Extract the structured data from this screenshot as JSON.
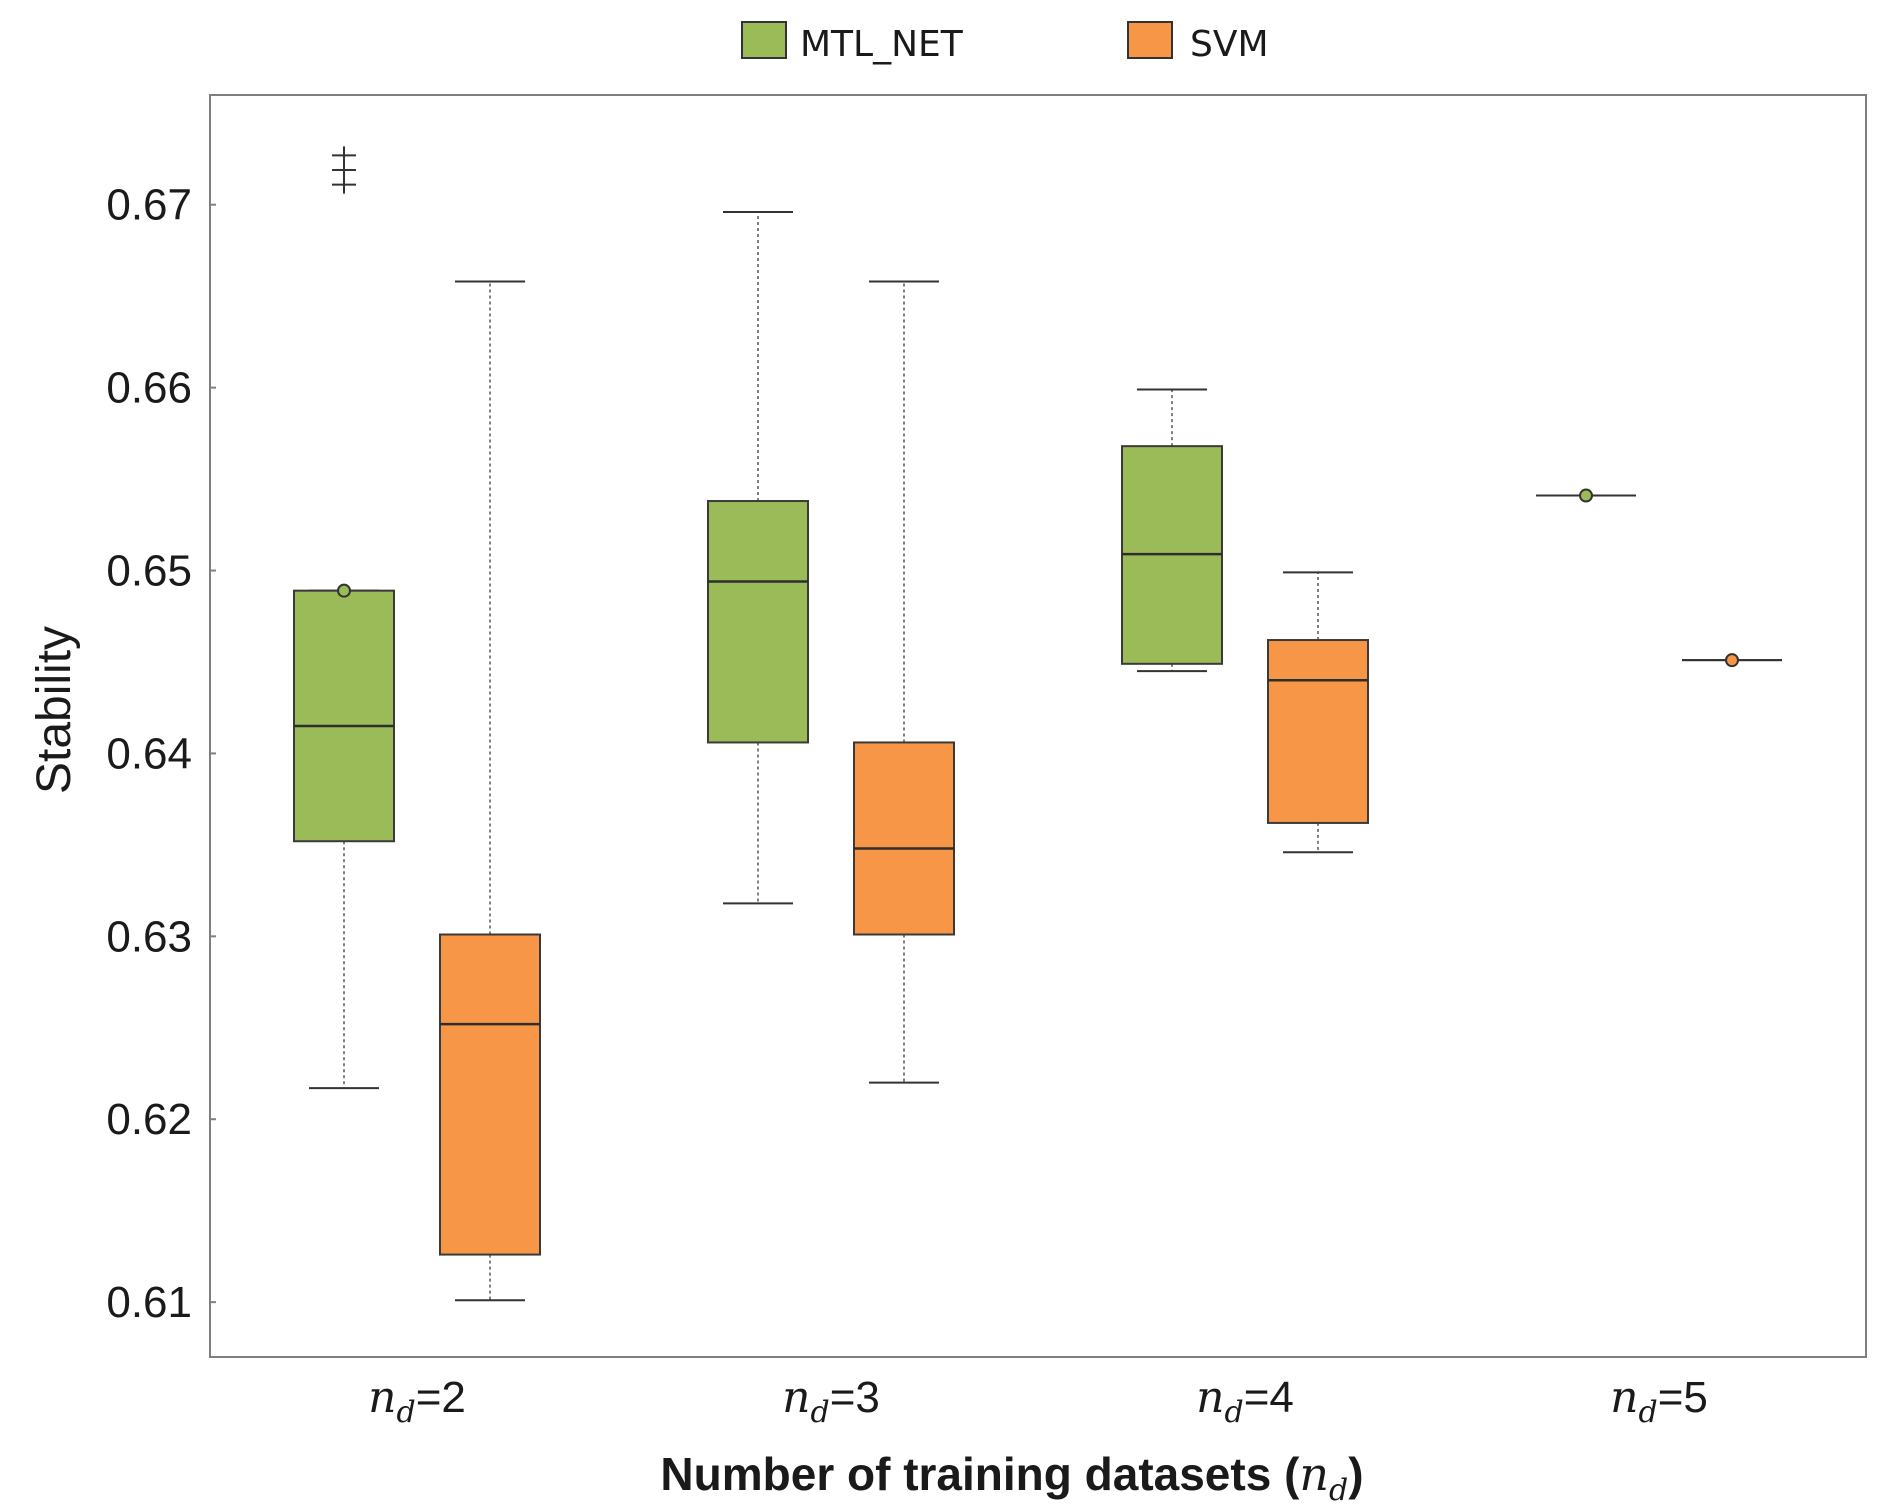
{
  "chart_data": {
    "type": "boxplot",
    "title": "",
    "xlabel": "Number of training datasets (n_d)",
    "ylabel": "Stability",
    "ylim": [
      0.607,
      0.676
    ],
    "yticks": [
      0.61,
      0.62,
      0.63,
      0.64,
      0.65,
      0.66,
      0.67
    ],
    "ytick_labels": [
      "0.61",
      "0.62",
      "0.63",
      "0.64",
      "0.65",
      "0.66",
      "0.67"
    ],
    "xlabel_parts": {
      "prefix": "Number of training datasets (",
      "var": "n",
      "sub": "d",
      "suffix": ")"
    },
    "categories": [
      {
        "var": "n",
        "sub": "d",
        "value": "=2"
      },
      {
        "var": "n",
        "sub": "d",
        "value": "=3"
      },
      {
        "var": "n",
        "sub": "d",
        "value": "=4"
      },
      {
        "var": "n",
        "sub": "d",
        "value": "=5"
      }
    ],
    "legend": {
      "position": "top-center"
    },
    "series": [
      {
        "name": "MTL_NET",
        "color": "#9bbb59",
        "boxes": [
          {
            "whislo": 0.6217,
            "q1": 0.6352,
            "med": 0.6415,
            "q3": 0.6489,
            "whishi": 0.6489,
            "fliers": [
              0.6711,
              0.6719,
              0.6727
            ],
            "dots": [
              0.6489
            ]
          },
          {
            "whislo": 0.6318,
            "q1": 0.6406,
            "med": 0.6494,
            "q3": 0.6538,
            "whishi": 0.6696,
            "fliers": [],
            "dots": []
          },
          {
            "whislo": 0.6445,
            "q1": 0.6449,
            "med": 0.6509,
            "q3": 0.6568,
            "whishi": 0.6599,
            "fliers": [],
            "dots": []
          },
          {
            "whislo": 0.6541,
            "q1": 0.6541,
            "med": 0.6541,
            "q3": 0.6541,
            "whishi": 0.6541,
            "fliers": [],
            "dots": [
              0.6541
            ]
          }
        ]
      },
      {
        "name": "SVM",
        "color": "#f79646",
        "boxes": [
          {
            "whislo": 0.6101,
            "q1": 0.6126,
            "med": 0.6252,
            "q3": 0.6301,
            "whishi": 0.6658,
            "fliers": [],
            "dots": []
          },
          {
            "whislo": 0.622,
            "q1": 0.6301,
            "med": 0.6348,
            "q3": 0.6406,
            "whishi": 0.6658,
            "fliers": [],
            "dots": []
          },
          {
            "whislo": 0.6346,
            "q1": 0.6362,
            "med": 0.644,
            "q3": 0.6462,
            "whishi": 0.6499,
            "fliers": [],
            "dots": []
          },
          {
            "whislo": 0.6451,
            "q1": 0.6451,
            "med": 0.6451,
            "q3": 0.6451,
            "whishi": 0.6451,
            "fliers": [],
            "dots": [
              0.6451
            ]
          }
        ]
      }
    ]
  }
}
